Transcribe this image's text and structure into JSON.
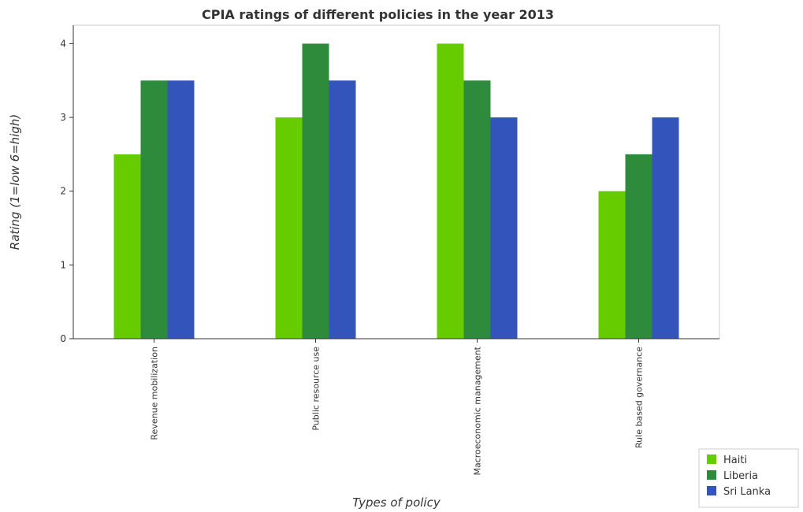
{
  "chart_data": {
    "type": "bar",
    "title": "CPIA ratings of different policies in the year 2013",
    "xlabel": "Types of policy",
    "ylabel": "Rating (1=low 6=high)",
    "categories": [
      "Revenue mobilization",
      "Public resource use",
      "Macroeconomic management",
      "Rule based governance"
    ],
    "series": [
      {
        "name": "Haiti",
        "values": [
          2.5,
          3.0,
          4.0,
          2.0
        ],
        "color": "#66cc00"
      },
      {
        "name": "Liberia",
        "values": [
          3.5,
          4.0,
          3.5,
          2.5
        ],
        "color": "#2e8b3c"
      },
      {
        "name": "Sri Lanka",
        "values": [
          3.5,
          3.5,
          3.0,
          3.0
        ],
        "color": "#3355bb"
      }
    ],
    "yticks": [
      0,
      1,
      2,
      3,
      4
    ],
    "ylim": [
      0,
      4.25
    ],
    "legend_position": "bottom-right",
    "grid": false
  }
}
